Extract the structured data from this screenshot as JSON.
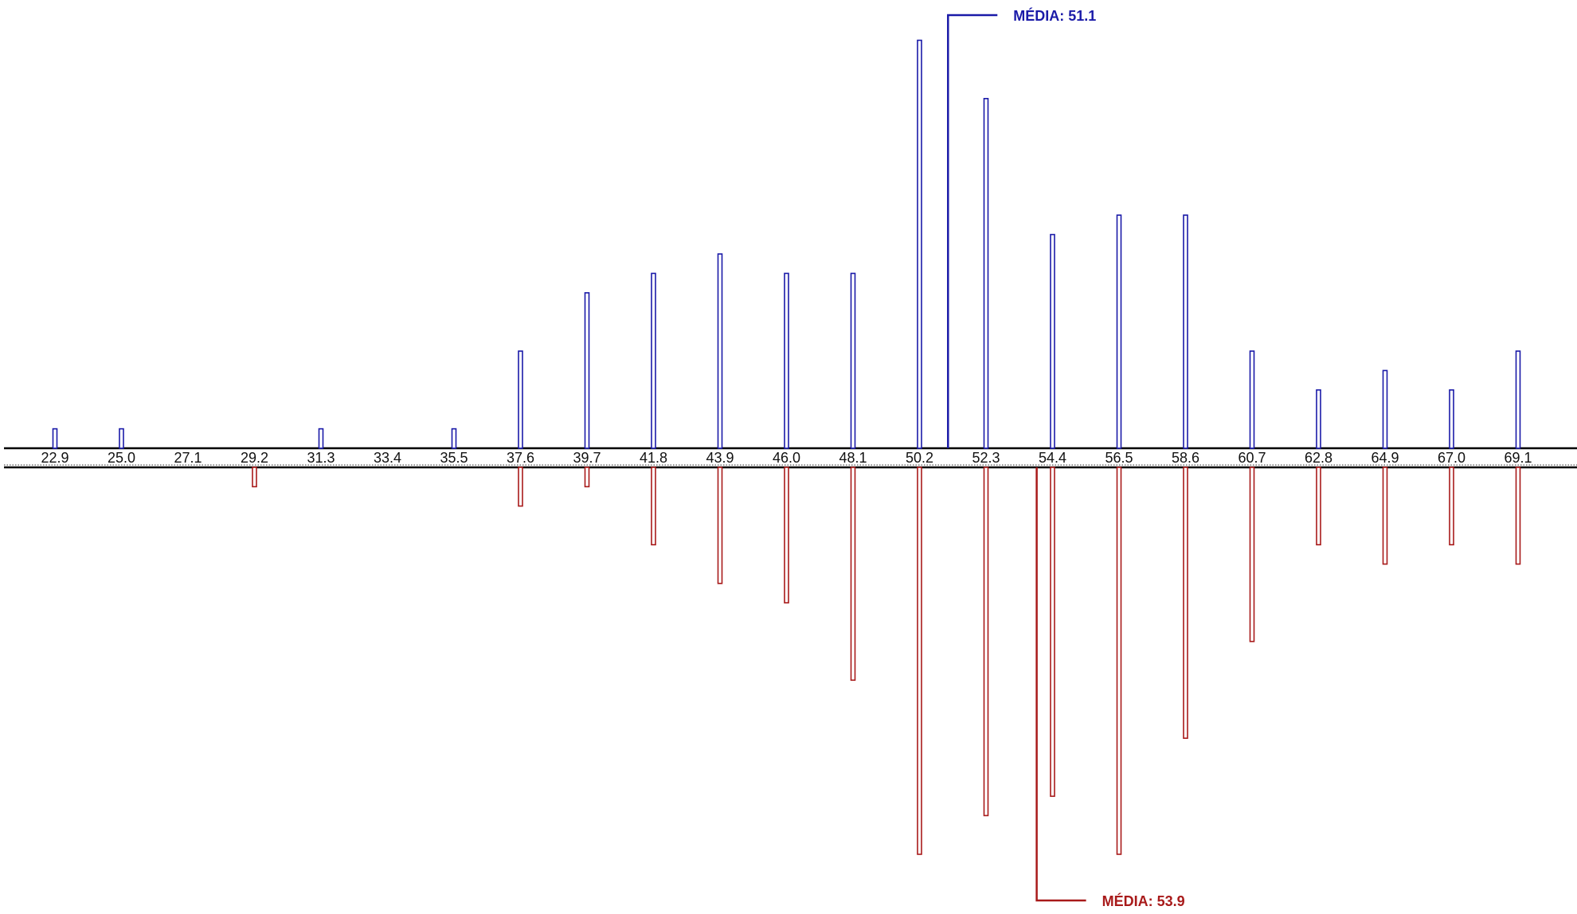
{
  "chart_data": {
    "type": "bar",
    "categories": [
      "22.9",
      "25.0",
      "27.1",
      "29.2",
      "31.3",
      "33.4",
      "35.5",
      "37.6",
      "39.7",
      "41.8",
      "43.9",
      "46.0",
      "48.1",
      "50.2",
      "52.3",
      "54.4",
      "56.5",
      "58.6",
      "60.7",
      "62.8",
      "64.9",
      "67.0",
      "69.1"
    ],
    "series": [
      {
        "color": "#1a1aa8",
        "direction": "up",
        "values": [
          1,
          1,
          0,
          0,
          1,
          0,
          1,
          5,
          8,
          9,
          10,
          9,
          9,
          21,
          18,
          11,
          12,
          12,
          5,
          3,
          4,
          3,
          5
        ],
        "mean": {
          "label": "MÉDIA: 51.1",
          "value": 51.1
        }
      },
      {
        "color": "#a81a1a",
        "direction": "down",
        "values": [
          0,
          0,
          0,
          1,
          0,
          0,
          0,
          2,
          1,
          4,
          6,
          7,
          11,
          20,
          18,
          17,
          20,
          14,
          9,
          4,
          5,
          4,
          5
        ],
        "mean": {
          "label": "MÉDIA: 53.9",
          "value": 53.9
        }
      }
    ],
    "grid": false,
    "legend": "none"
  }
}
